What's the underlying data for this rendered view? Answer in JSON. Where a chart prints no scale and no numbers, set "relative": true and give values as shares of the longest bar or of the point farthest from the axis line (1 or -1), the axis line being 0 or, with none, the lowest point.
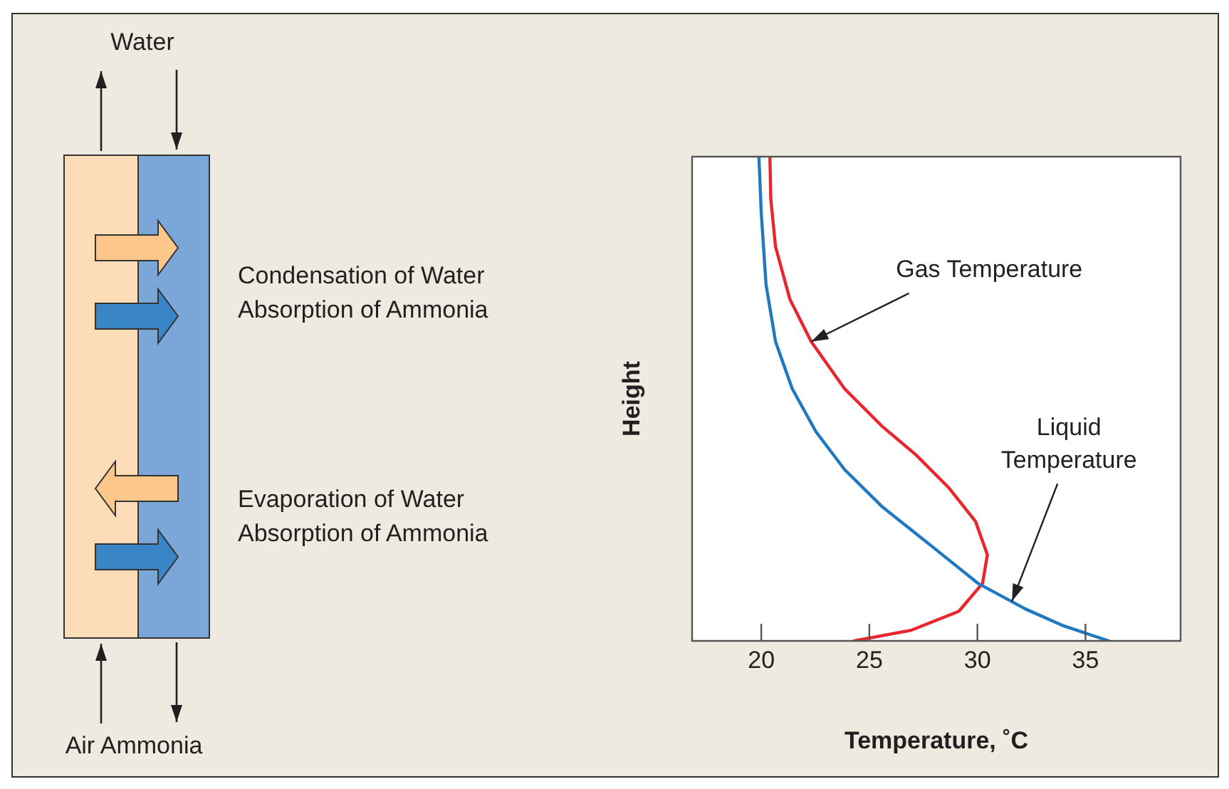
{
  "chart_data": [
    {
      "type": "other",
      "annotations": [
        "Water",
        "Condensation of Water",
        "Absorption of Ammonia",
        "Evaporation of Water",
        "Absorption of Ammonia",
        "Air Ammonia"
      ]
    },
    {
      "type": "line",
      "xlabel": "Temperature, ˚C",
      "ylabel": "Height",
      "relative": true,
      "xlim": [
        16.8,
        39.4
      ],
      "xticks": [
        20,
        25,
        30,
        35
      ],
      "grid": false,
      "legend": false,
      "series": [
        {
          "color": "#1f78c0",
          "x": [
            19.89,
            20.0,
            20.22,
            20.66,
            21.43,
            22.53,
            23.85,
            25.62,
            27.82,
            30.02,
            32.22,
            33.99,
            36.08
          ],
          "values": [
            1.0,
            0.883,
            0.736,
            0.618,
            0.521,
            0.432,
            0.354,
            0.276,
            0.198,
            0.119,
            0.066,
            0.031,
            0
          ]
        },
        {
          "color": "#e8262d",
          "x": [
            20.4,
            20.44,
            20.66,
            21.32,
            22.31,
            23.85,
            25.62,
            27.16,
            28.7,
            29.91,
            30.46,
            30.24,
            29.14,
            26.94,
            24.3
          ],
          "values": [
            1.0,
            0.912,
            0.814,
            0.706,
            0.618,
            0.521,
            0.442,
            0.384,
            0.315,
            0.247,
            0.178,
            0.119,
            0.061,
            0.022,
            0
          ]
        }
      ],
      "annotations": [
        {
          "text": "Gas Temperature",
          "x": 22.31,
          "y": 0.618
        },
        {
          "text": "Liquid\nTemperature",
          "x": 31.6,
          "y": 0.082
        }
      ]
    }
  ]
}
